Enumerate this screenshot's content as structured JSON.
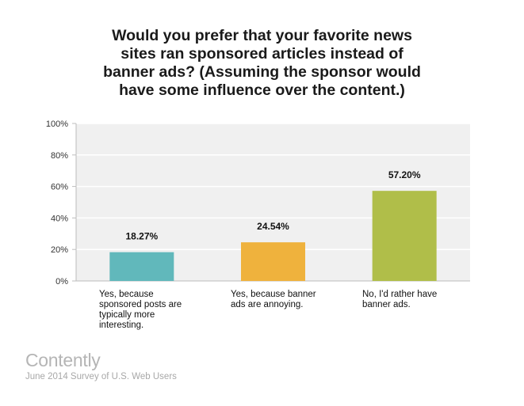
{
  "chart_data": {
    "type": "bar",
    "title_lines": [
      "Would you prefer that your favorite news",
      "sites ran sponsored articles instead of",
      "banner ads? (Assuming the sponsor would",
      "have some influence over the content.)"
    ],
    "categories": [
      [
        "Yes, because",
        "sponsored posts are",
        "typically more",
        "interesting."
      ],
      [
        "Yes, because banner",
        "ads are annoying."
      ],
      [
        "No, I'd rather have",
        "banner ads."
      ]
    ],
    "values": [
      18.27,
      24.54,
      57.2
    ],
    "data_labels": [
      "18.27%",
      "24.54%",
      "57.20%"
    ],
    "colors": [
      "#61b8bb",
      "#efb23d",
      "#b0be49"
    ],
    "ylim": [
      0,
      100
    ],
    "yticks": [
      "0%",
      "20%",
      "40%",
      "60%",
      "80%",
      "100%"
    ],
    "grid": true,
    "background": "#f0f0f0"
  },
  "footer": {
    "brand": "Contently",
    "caption": "June 2014 Survey of U.S. Web Users"
  }
}
